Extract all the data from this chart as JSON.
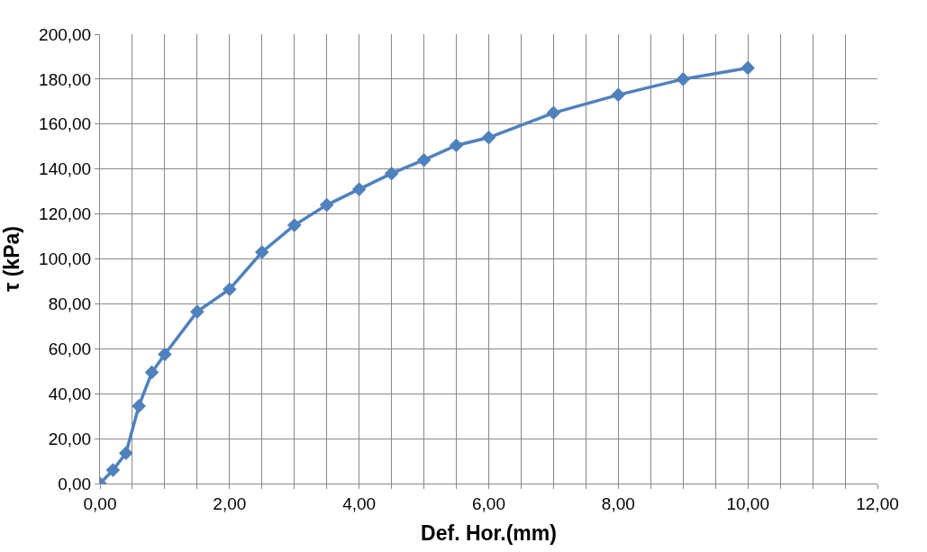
{
  "chart_data": {
    "type": "line",
    "xlabel": "Def. Hor.(mm)",
    "ylabel": "τ (kPa)",
    "x": [
      0,
      0.2,
      0.4,
      0.6,
      0.8,
      1.0,
      1.5,
      2.0,
      2.5,
      3.0,
      3.5,
      4.0,
      4.5,
      5.0,
      5.5,
      6.0,
      7.0,
      8.0,
      9.0,
      10.0
    ],
    "series": [
      {
        "color": "#4f81bd",
        "values": [
          0,
          6,
          13.5,
          34.5,
          49.5,
          57.5,
          76.5,
          86.5,
          103,
          115,
          124,
          131,
          138,
          144,
          150.5,
          154,
          165,
          173,
          180,
          185
        ]
      }
    ],
    "xlim": [
      0,
      12
    ],
    "ylim": [
      0,
      200
    ],
    "xticks": [
      {
        "value": 0,
        "label": "0,00"
      },
      {
        "value": 0.5,
        "label": null
      },
      {
        "value": 1,
        "label": null
      },
      {
        "value": 1.5,
        "label": null
      },
      {
        "value": 2,
        "label": "2,00"
      },
      {
        "value": 2.5,
        "label": null
      },
      {
        "value": 3,
        "label": null
      },
      {
        "value": 3.5,
        "label": null
      },
      {
        "value": 4,
        "label": "4,00"
      },
      {
        "value": 4.5,
        "label": null
      },
      {
        "value": 5,
        "label": null
      },
      {
        "value": 5.5,
        "label": null
      },
      {
        "value": 6,
        "label": "6,00"
      },
      {
        "value": 6.5,
        "label": null
      },
      {
        "value": 7,
        "label": null
      },
      {
        "value": 7.5,
        "label": null
      },
      {
        "value": 8,
        "label": "8,00"
      },
      {
        "value": 8.5,
        "label": null
      },
      {
        "value": 9,
        "label": null
      },
      {
        "value": 9.5,
        "label": null
      },
      {
        "value": 10,
        "label": "10,00"
      },
      {
        "value": 10.5,
        "label": null
      },
      {
        "value": 11,
        "label": null
      },
      {
        "value": 11.5,
        "label": null
      },
      {
        "value": 12,
        "label": "12,00"
      }
    ],
    "yticks": [
      {
        "value": 0,
        "label": "0,00"
      },
      {
        "value": 20,
        "label": "20,00"
      },
      {
        "value": 40,
        "label": "40,00"
      },
      {
        "value": 60,
        "label": "60,00"
      },
      {
        "value": 80,
        "label": "80,00"
      },
      {
        "value": 100,
        "label": "100,00"
      },
      {
        "value": 120,
        "label": "120,00"
      },
      {
        "value": 140,
        "label": "140,00"
      },
      {
        "value": 160,
        "label": "160,00"
      },
      {
        "value": 180,
        "label": "180,00"
      },
      {
        "value": 200,
        "label": "200,00"
      }
    ],
    "grid": true,
    "marker": "diamond",
    "line_style": "solid"
  }
}
